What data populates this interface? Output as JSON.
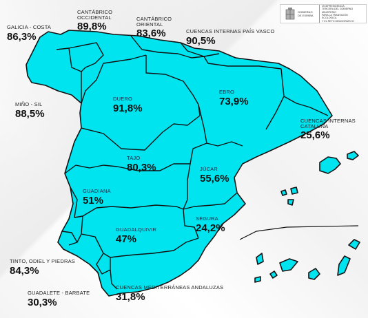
{
  "header": {
    "government": "GOBIERNO DE ESPAÑA",
    "ministry_lines": [
      "VICEPRESIDENCIA",
      "TERCERA DEL GOBIERNO",
      "MINISTERIO",
      "PARA LA TRANSICIÓN ECOLÓGICA",
      "Y EL RETO DEMOGRÁFICO"
    ]
  },
  "colors": {
    "basin_fill": "#00e4f0",
    "border": "#111111",
    "background": "#ffffff"
  },
  "basins": [
    {
      "name": "GALICIA - COSTA",
      "value": "86,3%"
    },
    {
      "name": "CANTÁBRICO OCCIDENTAL",
      "name_lines": [
        "CANTÁBRICO",
        "OCCIDENTAL"
      ],
      "value": "89,8%"
    },
    {
      "name": "CANTÁBRICO ORIENTAL",
      "name_lines": [
        "CANTÁBRICO",
        "ORIENTAL"
      ],
      "value": "83,6%"
    },
    {
      "name": "CUENCAS INTERNAS PAÍS VASCO",
      "value": "90,5%"
    },
    {
      "name": "MIÑO - SIL",
      "value": "88,5%"
    },
    {
      "name": "DUERO",
      "value": "91,8%"
    },
    {
      "name": "EBRO",
      "value": "73,9%"
    },
    {
      "name": "CUENCAS INTERNAS CATALUÑA",
      "name_lines": [
        "CUENCAS INTERNAS",
        "CATALUÑA"
      ],
      "value": "25,6%"
    },
    {
      "name": "TAJO",
      "value": "80,3%"
    },
    {
      "name": "JÚCAR",
      "value": "55,6%"
    },
    {
      "name": "GUADIANA",
      "value": "51%"
    },
    {
      "name": "SEGURA",
      "value": "24,2%"
    },
    {
      "name": "GUADALQUIVIR",
      "value": "47%"
    },
    {
      "name": "TINTO, ODIEL Y PIEDRAS",
      "value": "84,3%"
    },
    {
      "name": "GUADALETE - BARBATE",
      "value": "30,3%"
    },
    {
      "name": "CUENCAS MEDITERRÁNEAS ANDALUZAS",
      "value": "31,8%"
    }
  ]
}
